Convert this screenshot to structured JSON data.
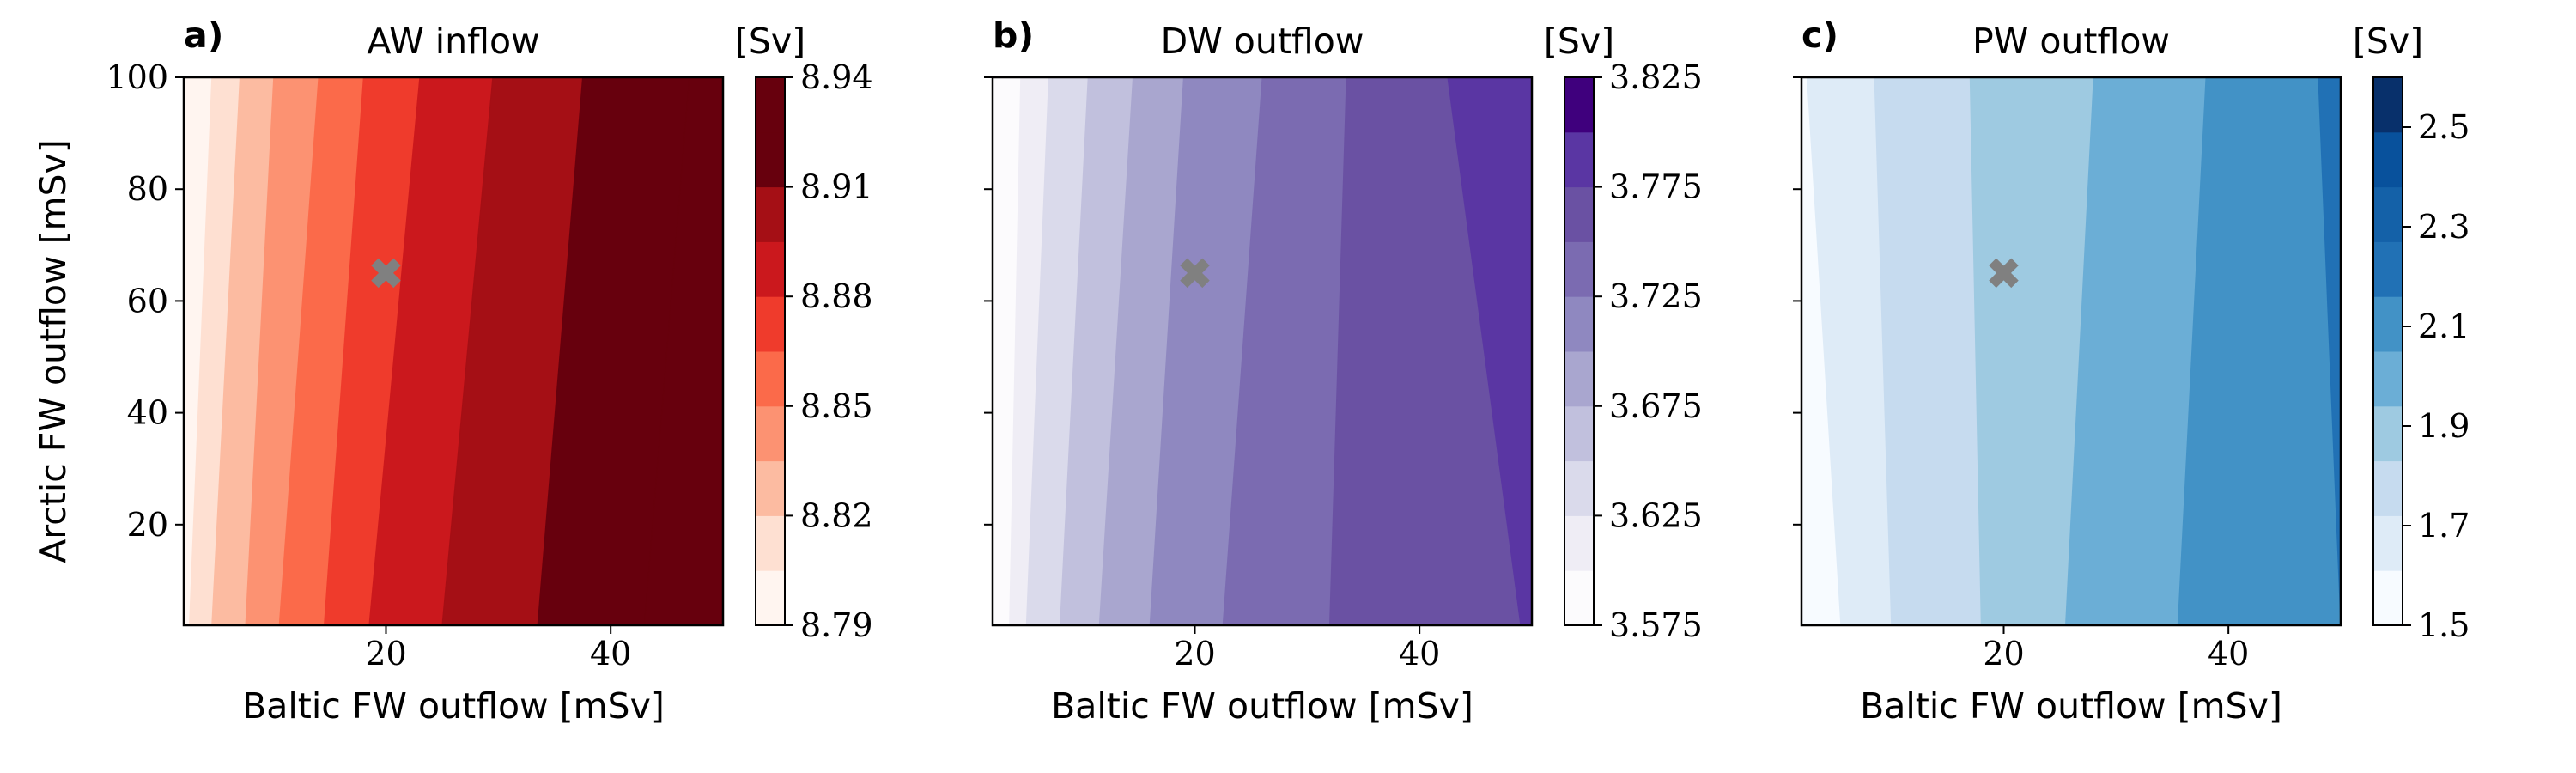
{
  "chart_data": [
    {
      "type": "contourf",
      "panel_label": "a)",
      "title": "AW inflow",
      "xlabel": "Baltic FW outflow [mSv]",
      "ylabel": "Arctic FW outflow [mSv]",
      "xlim": [
        2,
        50
      ],
      "ylim": [
        2,
        100
      ],
      "xticks": [
        20,
        40
      ],
      "yticks": [
        20,
        40,
        60,
        80,
        100
      ],
      "marker": {
        "symbol": "x",
        "x": 20,
        "y": 65,
        "color": "#808080"
      },
      "colorbar": {
        "unit": "[Sv]",
        "min": 8.79,
        "max": 8.94,
        "ticks": [
          8.79,
          8.82,
          8.85,
          8.88,
          8.91,
          8.94
        ],
        "tick_labels": [
          "8.79",
          "8.82",
          "8.85",
          "8.88",
          "8.91",
          "8.94"
        ],
        "colors": [
          "#fff5f0",
          "#fee0d2",
          "#fcbba1",
          "#fc9272",
          "#fb6a4a",
          "#ef3b2c",
          "#cb181d",
          "#a50f15",
          "#67000d",
          "#67000d"
        ]
      },
      "bands_at_y_min": [
        2.5,
        4.5,
        7.5,
        10.5,
        14.5,
        18.5,
        25.0,
        33.5,
        43.0
      ],
      "bands_at_y_max": [
        4.5,
        7.0,
        10.0,
        14.0,
        18.0,
        23.0,
        29.5,
        37.5,
        47.0
      ]
    },
    {
      "type": "contourf",
      "panel_label": "b)",
      "title": "DW outflow",
      "xlabel": "Baltic FW outflow [mSv]",
      "ylabel": "",
      "xlim": [
        2,
        50
      ],
      "ylim": [
        2,
        100
      ],
      "xticks": [
        20,
        40
      ],
      "yticks": [
        20,
        40,
        60,
        80,
        100
      ],
      "marker": {
        "symbol": "x",
        "x": 20,
        "y": 65,
        "color": "#808080"
      },
      "colorbar": {
        "unit": "[Sv]",
        "min": 3.575,
        "max": 3.825,
        "ticks": [
          3.575,
          3.625,
          3.675,
          3.725,
          3.775,
          3.825
        ],
        "tick_labels": [
          "3.575",
          "3.625",
          "3.675",
          "3.725",
          "3.775",
          "3.825"
        ],
        "colors": [
          "#fcfbfd",
          "#efedf5",
          "#dadaeb",
          "#c1c0dd",
          "#a9a6cf",
          "#8f88c0",
          "#7b6bb1",
          "#6a51a3",
          "#5a36a3",
          "#3f007d"
        ]
      },
      "bands_at_y_min": [
        3.5,
        5.0,
        8.0,
        11.5,
        16.0,
        22.5,
        32.0,
        49.0
      ],
      "bands_at_y_max": [
        4.5,
        7.0,
        10.5,
        14.5,
        19.0,
        26.0,
        33.5,
        42.5
      ]
    },
    {
      "type": "contourf",
      "panel_label": "c)",
      "title": "PW outflow",
      "xlabel": "Baltic FW outflow [mSv]",
      "ylabel": "",
      "xlim": [
        2,
        50
      ],
      "ylim": [
        2,
        100
      ],
      "xticks": [
        20,
        40
      ],
      "yticks": [
        20,
        40,
        60,
        80,
        100
      ],
      "marker": {
        "symbol": "x",
        "x": 20,
        "y": 65,
        "color": "#808080"
      },
      "colorbar": {
        "unit": "[Sv]",
        "min": 1.5,
        "max": 2.6,
        "ticks": [
          1.5,
          1.7,
          1.9,
          2.1,
          2.3,
          2.5
        ],
        "tick_labels": [
          "1.5",
          "1.7",
          "1.9",
          "2.1",
          "2.3",
          "2.5"
        ],
        "colors": [
          "#f7fbff",
          "#deebf7",
          "#c6dbef",
          "#9ecae1",
          "#6baed6",
          "#4292c6",
          "#2171b5",
          "#1461a8",
          "#08519c",
          "#08306b"
        ]
      },
      "bands_at_y_min": [
        5.5,
        10.0,
        18.0,
        25.5,
        35.5
      ],
      "bands_at_y_max": [
        2.5,
        8.5,
        17.0,
        28.0,
        38.0,
        48.0
      ]
    }
  ]
}
